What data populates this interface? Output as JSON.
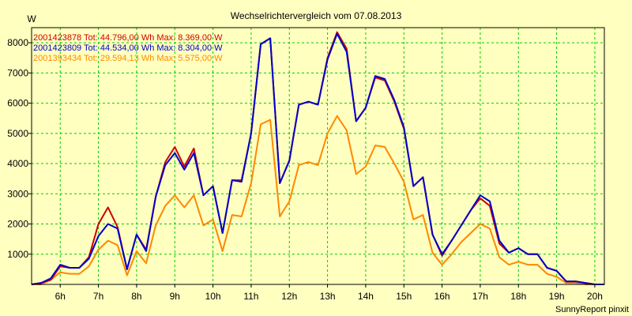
{
  "chart_data": {
    "type": "line",
    "title": "Wechselrichtervergleich vom 07.08.2013",
    "ylabel": "W",
    "ylim": [
      0,
      8500
    ],
    "xlim": [
      5.25,
      20.25
    ],
    "yticks": [
      1000,
      2000,
      3000,
      4000,
      5000,
      6000,
      7000,
      8000
    ],
    "xticks": [
      {
        "v": 6,
        "label": "6h"
      },
      {
        "v": 7,
        "label": "7h"
      },
      {
        "v": 8,
        "label": "8h"
      },
      {
        "v": 9,
        "label": "9h"
      },
      {
        "v": 10,
        "label": "10h"
      },
      {
        "v": 11,
        "label": "11h"
      },
      {
        "v": 12,
        "label": "12h"
      },
      {
        "v": 13,
        "label": "13h"
      },
      {
        "v": 14,
        "label": "14h"
      },
      {
        "v": 15,
        "label": "15h"
      },
      {
        "v": 16,
        "label": "16h"
      },
      {
        "v": 17,
        "label": "17h"
      },
      {
        "v": 18,
        "label": "18h"
      },
      {
        "v": 19,
        "label": "19h"
      },
      {
        "v": 20,
        "label": "20h"
      }
    ],
    "grid": true,
    "background_color": "#ffffc0",
    "grid_color": "#00cc00",
    "x": [
      5.25,
      5.5,
      5.75,
      6.0,
      6.25,
      6.5,
      6.75,
      7.0,
      7.25,
      7.5,
      7.75,
      8.0,
      8.25,
      8.5,
      8.75,
      9.0,
      9.25,
      9.5,
      9.75,
      10.0,
      10.25,
      10.5,
      10.75,
      11.0,
      11.25,
      11.5,
      11.75,
      12.0,
      12.25,
      12.5,
      12.75,
      13.0,
      13.25,
      13.5,
      13.75,
      14.0,
      14.25,
      14.5,
      14.75,
      15.0,
      15.25,
      15.5,
      15.75,
      16.0,
      16.25,
      16.5,
      16.75,
      17.0,
      17.25,
      17.5,
      17.75,
      18.0,
      18.25,
      18.5,
      18.75,
      19.0,
      19.25,
      19.5,
      19.75,
      20.0,
      20.25
    ],
    "series": [
      {
        "name": "2001423878",
        "legend": "2001423878 Tot: 44.796,00 Wh Max: 8.369,00 W",
        "color": "#cc0000",
        "values": [
          0,
          50,
          150,
          600,
          550,
          550,
          900,
          2000,
          2550,
          1900,
          500,
          1650,
          1150,
          2900,
          4050,
          4550,
          3900,
          4500,
          2950,
          3250,
          1700,
          3450,
          3450,
          5000,
          7950,
          8150,
          3350,
          4100,
          5950,
          6050,
          5950,
          7500,
          8350,
          7800,
          5400,
          5850,
          6850,
          6750,
          6050,
          5150,
          3250,
          3550,
          1650,
          950,
          1450,
          1950,
          2450,
          2850,
          2600,
          1350,
          1050,
          1200,
          1000,
          1000,
          550,
          450,
          100,
          100,
          50,
          0,
          0
        ]
      },
      {
        "name": "2001423809",
        "legend": "2001423809 Tot: 44.534,00 Wh Max: 8.304,00 W",
        "color": "#0000cc",
        "values": [
          0,
          50,
          200,
          650,
          550,
          550,
          850,
          1600,
          2000,
          1850,
          500,
          1650,
          1100,
          2900,
          3950,
          4350,
          3800,
          4350,
          2950,
          3250,
          1700,
          3450,
          3400,
          5000,
          7950,
          8150,
          3350,
          4100,
          5950,
          6050,
          5950,
          7450,
          8300,
          7700,
          5400,
          5850,
          6900,
          6800,
          6100,
          5200,
          3250,
          3550,
          1650,
          1000,
          1450,
          1950,
          2450,
          2950,
          2750,
          1450,
          1050,
          1200,
          1000,
          1000,
          550,
          450,
          100,
          100,
          50,
          0,
          0
        ]
      },
      {
        "name": "2001393434",
        "legend": "2001393434 Tot: 29.594,13 Wh Max: 5.575,00 W",
        "color": "#ff8800",
        "values": [
          0,
          0,
          150,
          400,
          350,
          350,
          600,
          1150,
          1450,
          1300,
          300,
          1100,
          700,
          1950,
          2600,
          2950,
          2550,
          2950,
          1950,
          2150,
          1100,
          2300,
          2250,
          3350,
          5300,
          5450,
          2250,
          2750,
          3950,
          4050,
          3950,
          5000,
          5575,
          5100,
          3650,
          3900,
          4600,
          4550,
          4000,
          3400,
          2150,
          2300,
          1050,
          650,
          1000,
          1400,
          1700,
          2000,
          1850,
          900,
          650,
          750,
          650,
          650,
          350,
          250,
          50,
          50,
          0,
          0,
          0
        ]
      }
    ],
    "credit": "SunnyReport pinxit"
  }
}
